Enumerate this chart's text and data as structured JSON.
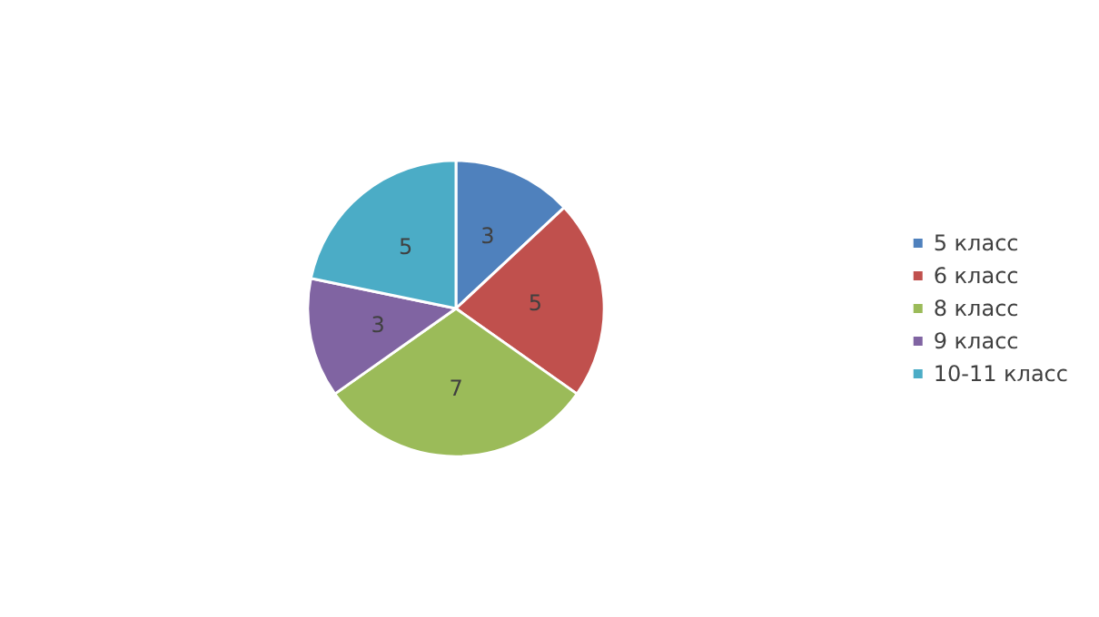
{
  "chart_data": {
    "type": "pie",
    "categories": [
      "5 класс",
      "6 класс",
      "8 класс",
      "9 класс",
      "10-11 класс"
    ],
    "values": [
      3,
      5,
      7,
      3,
      5
    ],
    "colors": [
      "#4f81bd",
      "#c0504d",
      "#9bbb59",
      "#8064a2",
      "#4bacc6"
    ],
    "data_labels": true,
    "legend": "right"
  }
}
